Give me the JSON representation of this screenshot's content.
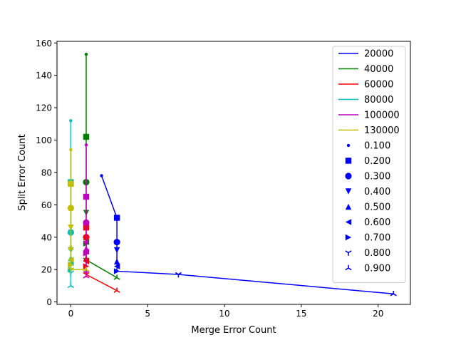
{
  "chart_data": {
    "type": "line",
    "title": "",
    "xlabel": "Merge Error Count",
    "ylabel": "Split Error Count",
    "xlim": [
      -0.9,
      22.1
    ],
    "ylim": [
      -1.5,
      161
    ],
    "xticks": [
      0,
      5,
      10,
      15,
      20
    ],
    "yticks": [
      0,
      20,
      40,
      60,
      80,
      100,
      120,
      140,
      160
    ],
    "grid": false,
    "legend_position": "top-right",
    "marker_legend": [
      {
        "label": "0.100",
        "marker": "point"
      },
      {
        "label": "0.200",
        "marker": "square"
      },
      {
        "label": "0.300",
        "marker": "circle"
      },
      {
        "label": "0.400",
        "marker": "triangle-down"
      },
      {
        "label": "0.500",
        "marker": "triangle-up"
      },
      {
        "label": "0.600",
        "marker": "triangle-left"
      },
      {
        "label": "0.700",
        "marker": "triangle-right"
      },
      {
        "label": "0.800",
        "marker": "tri-down"
      },
      {
        "label": "0.900",
        "marker": "tri-up"
      }
    ],
    "series": [
      {
        "name": "20000",
        "color": "#0000ff",
        "points": [
          [
            2,
            78
          ],
          [
            3,
            52
          ],
          [
            3,
            37
          ],
          [
            3,
            32
          ],
          [
            3,
            25
          ],
          [
            3,
            22
          ],
          [
            3,
            19
          ],
          [
            7,
            17
          ],
          [
            21,
            5
          ]
        ]
      },
      {
        "name": "40000",
        "color": "#008000",
        "points": [
          [
            1,
            153
          ],
          [
            1,
            102
          ],
          [
            1,
            74
          ],
          [
            1,
            55
          ],
          [
            1,
            40
          ],
          [
            1,
            37
          ],
          [
            1,
            36
          ],
          [
            1,
            26
          ],
          [
            3,
            15
          ]
        ]
      },
      {
        "name": "60000",
        "color": "#ff0000",
        "points": [
          [
            1,
            49
          ],
          [
            1,
            46
          ],
          [
            1,
            40
          ],
          [
            1,
            30
          ],
          [
            1,
            27
          ],
          [
            1,
            25
          ],
          [
            1,
            22
          ],
          [
            1,
            17
          ],
          [
            3,
            7
          ]
        ]
      },
      {
        "name": "80000",
        "color": "#00bfbf",
        "points": [
          [
            0,
            112
          ],
          [
            0,
            74
          ],
          [
            0,
            43
          ],
          [
            0,
            32
          ],
          [
            0,
            27
          ],
          [
            0,
            24
          ],
          [
            0,
            20
          ],
          [
            0,
            18
          ],
          [
            0,
            10
          ]
        ]
      },
      {
        "name": "100000",
        "color": "#bf00bf",
        "points": [
          [
            1,
            97
          ],
          [
            1,
            65
          ],
          [
            1,
            49
          ],
          [
            1,
            36
          ],
          [
            1,
            33
          ],
          [
            1,
            31
          ],
          [
            1,
            30
          ],
          [
            1,
            18
          ],
          [
            1,
            16
          ]
        ]
      },
      {
        "name": "130000",
        "color": "#bfbf00",
        "points": [
          [
            0,
            94
          ],
          [
            0,
            73
          ],
          [
            0,
            58
          ],
          [
            0,
            46
          ],
          [
            0,
            34
          ],
          [
            0,
            26
          ],
          [
            0,
            23
          ],
          [
            0,
            20
          ],
          [
            1,
            20
          ]
        ]
      }
    ]
  }
}
